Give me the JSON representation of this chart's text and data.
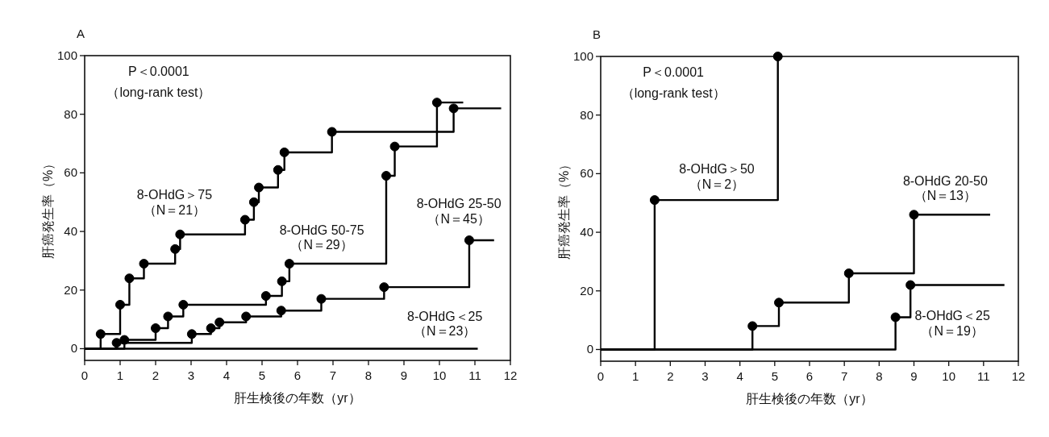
{
  "chart_data": [
    {
      "type": "step",
      "title": "A",
      "xlabel": "肝生検後の年数（yr）",
      "ylabel": "肝癌発生率（%）",
      "xlim": [
        0,
        12
      ],
      "ylim": [
        -4,
        100
      ],
      "xticks": [
        0,
        1,
        2,
        3,
        4,
        5,
        6,
        7,
        8,
        9,
        10,
        11,
        12
      ],
      "yticks": [
        0,
        20,
        40,
        60,
        80,
        100
      ],
      "line_style": "solid",
      "grid": false,
      "annotations": [
        "P＜0.0001",
        "（long-rank test）",
        "8-OHdG＞75\n（N＝21）",
        "8-OHdG 50-75\n（N＝29）",
        "8-OHdG 25-50\n（N＝45）",
        "8-OHdG＜25\n（N＝23）"
      ],
      "series": [
        {
          "color": "#000000",
          "marker": "circle",
          "x": [
            0,
            0.45,
            1.0,
            1.26,
            1.67,
            2.55,
            2.69,
            4.52,
            4.77,
            4.91,
            5.45,
            5.63,
            6.97,
            10.4,
            11.74
          ],
          "values": [
            0,
            5,
            15,
            24,
            29,
            34,
            39,
            44,
            50,
            55,
            61,
            67,
            74,
            82,
            82
          ]
        },
        {
          "color": "#000000",
          "marker": "circle",
          "x": [
            0,
            1.12,
            2.0,
            2.35,
            2.78,
            5.11,
            5.56,
            5.77,
            8.5,
            8.74,
            9.93,
            10.67
          ],
          "values": [
            0,
            3,
            7,
            11,
            15,
            18,
            23,
            29,
            59,
            69,
            84,
            84
          ]
        },
        {
          "color": "#000000",
          "marker": "circle",
          "x": [
            0,
            0.9,
            3.02,
            3.56,
            3.8,
            4.55,
            5.54,
            6.67,
            8.44,
            10.84,
            11.54
          ],
          "values": [
            0,
            2,
            5,
            7,
            9,
            11,
            13,
            17,
            21,
            37,
            37
          ]
        },
        {
          "color": "#000000",
          "x": [
            0,
            11.08
          ],
          "values": [
            0,
            0
          ]
        }
      ]
    },
    {
      "type": "step",
      "title": "B",
      "xlabel": "肝生検後の年数（yr）",
      "ylabel": "肝癌発生率（%）",
      "xlim": [
        0,
        12
      ],
      "ylim": [
        -4,
        100
      ],
      "xticks": [
        0,
        1,
        2,
        3,
        4,
        5,
        6,
        7,
        8,
        9,
        10,
        11,
        12
      ],
      "yticks": [
        0,
        20,
        40,
        60,
        80,
        100
      ],
      "line_style": "solid",
      "grid": false,
      "annotations": [
        "P＜0.0001",
        "（long-rank test）",
        "8-OHdG＞50\n（N＝2）",
        "8-OHdG 20-50\n（N＝13）",
        "8-OHdG＜25\n（N＝19）"
      ],
      "series": [
        {
          "color": "#000000",
          "marker": "circle",
          "x": [
            0,
            1.55,
            5.09
          ],
          "values": [
            0,
            51,
            100
          ]
        },
        {
          "color": "#000000",
          "marker": "circle",
          "x": [
            0,
            4.36,
            5.12,
            7.13,
            9.0,
            11.19
          ],
          "values": [
            0,
            8,
            16,
            26,
            46,
            46
          ]
        },
        {
          "color": "#000000",
          "marker": "circle",
          "x": [
            0,
            8.47,
            8.9,
            11.6
          ],
          "values": [
            0,
            11,
            22,
            22
          ]
        }
      ]
    }
  ]
}
